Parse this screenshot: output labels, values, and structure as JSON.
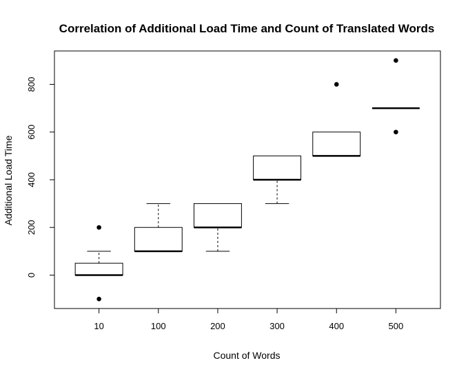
{
  "chart_data": {
    "type": "boxplot",
    "title": "Correlation of Additional Load Time and Count of Translated Words",
    "xlabel": "Count of Words",
    "ylabel": "Additional Load Time",
    "categories": [
      "10",
      "100",
      "200",
      "300",
      "400",
      "500"
    ],
    "yticks": [
      0,
      200,
      400,
      600,
      800
    ],
    "ylim": [
      -140,
      940
    ],
    "boxes": [
      {
        "label": "10",
        "whisker_low": 0,
        "q1": 0,
        "median": 0,
        "q3": 50,
        "whisker_high": 100,
        "outliers": [
          200,
          -100
        ]
      },
      {
        "label": "100",
        "whisker_low": 100,
        "q1": 100,
        "median": 100,
        "q3": 200,
        "whisker_high": 300,
        "outliers": []
      },
      {
        "label": "200",
        "whisker_low": 100,
        "q1": 200,
        "median": 200,
        "q3": 300,
        "whisker_high": 300,
        "outliers": []
      },
      {
        "label": "300",
        "whisker_low": 300,
        "q1": 400,
        "median": 400,
        "q3": 500,
        "whisker_high": 500,
        "outliers": []
      },
      {
        "label": "400",
        "whisker_low": 500,
        "q1": 500,
        "median": 500,
        "q3": 600,
        "whisker_high": 600,
        "outliers": [
          800
        ]
      },
      {
        "label": "500",
        "whisker_low": 700,
        "q1": 700,
        "median": 700,
        "q3": 700,
        "whisker_high": 700,
        "outliers": [
          900,
          600
        ]
      }
    ],
    "grid": false,
    "legend": "none"
  }
}
